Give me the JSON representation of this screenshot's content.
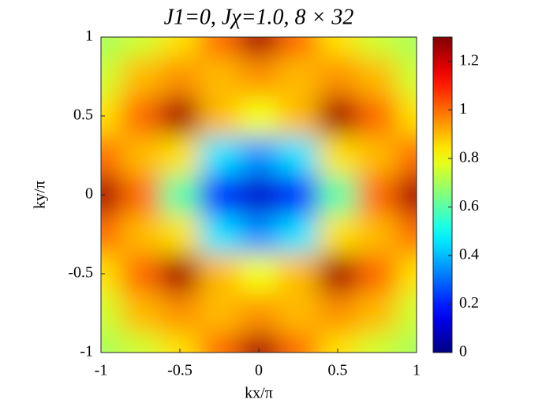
{
  "chart_data": {
    "type": "heatmap",
    "title": "J1=0, Jχ=1.0, 8 × 32",
    "x_label": "kx/π",
    "y_label": "ky/π",
    "x": [
      -1,
      -0.75,
      -0.5,
      -0.25,
      0,
      0.25,
      0.5,
      0.75,
      1
    ],
    "y": [
      -1,
      -0.75,
      -0.5,
      -0.25,
      0,
      0.25,
      0.5,
      0.75,
      1
    ],
    "z": [
      [
        0.7,
        0.75,
        0.85,
        1.0,
        1.25,
        1.0,
        0.85,
        0.75,
        0.7
      ],
      [
        0.75,
        0.9,
        0.95,
        0.9,
        0.95,
        0.9,
        0.95,
        0.9,
        0.75
      ],
      [
        0.85,
        1.0,
        1.25,
        0.9,
        0.8,
        0.9,
        1.25,
        1.0,
        0.85
      ],
      [
        1.0,
        0.9,
        0.85,
        0.45,
        0.35,
        0.45,
        0.85,
        0.9,
        1.0
      ],
      [
        1.25,
        1.0,
        0.6,
        0.2,
        0.1,
        0.2,
        0.6,
        1.0,
        1.25
      ],
      [
        1.0,
        0.9,
        0.85,
        0.45,
        0.35,
        0.45,
        0.85,
        0.9,
        1.0
      ],
      [
        0.85,
        1.0,
        1.25,
        0.9,
        0.8,
        0.9,
        1.25,
        1.0,
        0.85
      ],
      [
        0.75,
        0.9,
        0.95,
        0.9,
        0.95,
        0.9,
        0.95,
        0.9,
        0.75
      ],
      [
        0.7,
        0.75,
        0.85,
        1.0,
        1.25,
        1.0,
        0.85,
        0.75,
        0.7
      ]
    ],
    "xlim": [
      -1,
      1
    ],
    "ylim": [
      -1,
      1
    ],
    "xticks": [
      -1,
      -0.5,
      0,
      0.5,
      1
    ],
    "yticks": [
      -1,
      -0.5,
      0,
      0.5,
      1
    ],
    "colormap": "jet",
    "clim": [
      0,
      1.3
    ],
    "cticks": [
      0,
      0.2,
      0.4,
      0.6,
      0.8,
      1,
      1.2
    ]
  }
}
